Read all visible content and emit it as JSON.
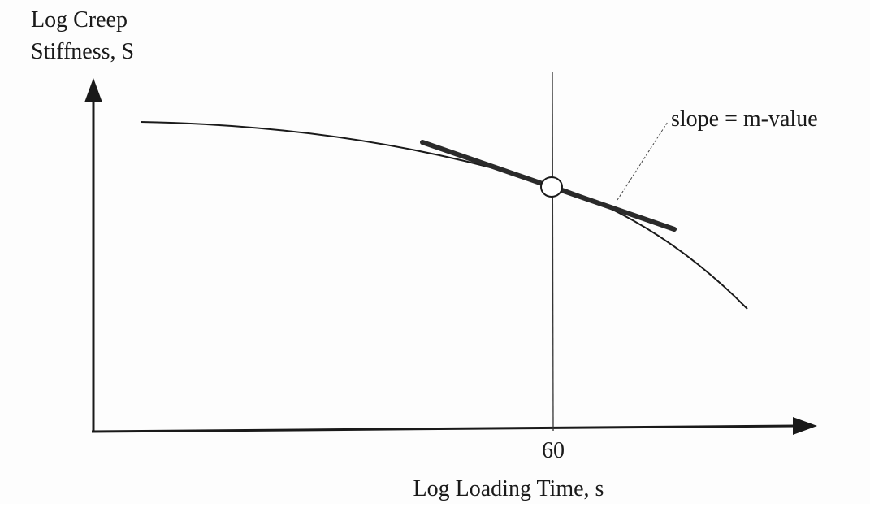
{
  "y_axis_label": {
    "lines": [
      "Log Creep",
      "Stiffness, S"
    ]
  },
  "x_axis_label": "Log Loading Time, s",
  "x_marker_label": "60",
  "annotation": "slope = m-value"
}
